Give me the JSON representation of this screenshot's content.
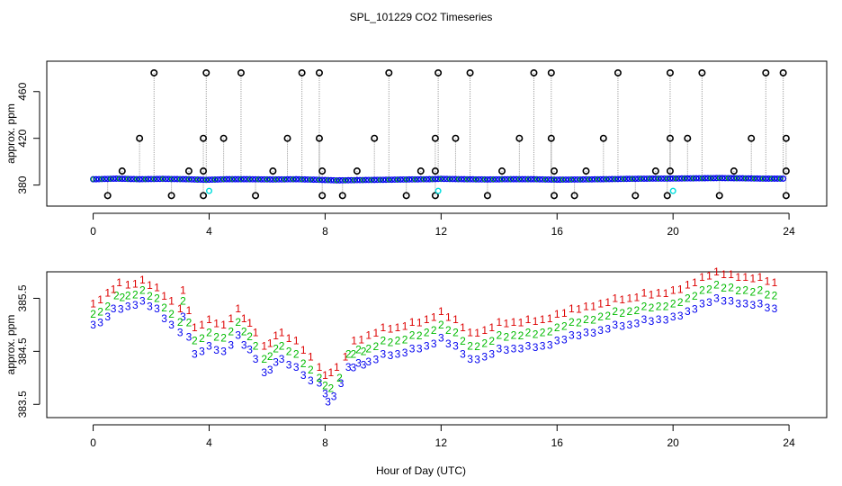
{
  "title": "SPL_101229  CO2 Timeseries",
  "xlabel": "Hour of Day (UTC)",
  "colors": {
    "frame": "#000000",
    "drop_line": "#a0a0a0",
    "outlier": "#000000",
    "blue": "#0000ee",
    "green": "#00bb00",
    "red": "#dd0000",
    "cyan": "#00dddd"
  },
  "chart_data": [
    {
      "type": "scatter",
      "panel": "top",
      "ylabel": "approx. ppm",
      "xlim": [
        -1.6,
        25.3
      ],
      "ylim": [
        362,
        486
      ],
      "xticks": [
        0,
        4,
        8,
        12,
        16,
        20,
        24
      ],
      "yticks": [
        380,
        420,
        460
      ],
      "baseline": {
        "x": [
          0.1,
          0.8,
          1.6,
          2.4,
          3.2,
          3.9,
          4.6,
          5.4,
          6.2,
          7.0,
          7.8,
          8.4,
          9.2,
          10.0,
          10.8,
          11.6,
          12.0,
          12.8,
          13.6,
          14.4,
          15.2,
          16.0,
          16.8,
          17.6,
          18.4,
          19.2,
          20.0,
          20.8,
          21.6,
          22.4,
          23.2,
          23.8
        ],
        "y": [
          385,
          385.5,
          385,
          385.3,
          385,
          384.5,
          385,
          385,
          384.8,
          385,
          384.5,
          384,
          384.3,
          384.5,
          384.8,
          385,
          385.3,
          385,
          384.8,
          385,
          385,
          384.6,
          384.8,
          385,
          385.3,
          385.5,
          385.6,
          385.8,
          386,
          385.8,
          385.5,
          385.5
        ]
      },
      "series": [
        {
          "name": "outlier_high",
          "x": [
            2.1,
            3.9,
            5.1,
            7.2,
            7.8,
            10.2,
            11.9,
            13.0,
            15.2,
            15.8,
            18.1,
            19.9,
            21.0,
            23.2,
            23.8
          ],
          "y": [
            476,
            476,
            476,
            476,
            476,
            476,
            476,
            476,
            476,
            476,
            476,
            476,
            476,
            476,
            476
          ]
        },
        {
          "name": "outlier_mid",
          "x": [
            1.6,
            3.8,
            4.5,
            6.7,
            7.8,
            9.7,
            11.8,
            12.5,
            14.7,
            15.8,
            17.6,
            19.9,
            20.5,
            22.7,
            23.9
          ],
          "y": [
            420,
            420,
            420,
            420,
            420,
            420,
            420,
            420,
            420,
            420,
            420,
            420,
            420,
            420,
            420
          ]
        },
        {
          "name": "outlier_small",
          "x": [
            1.0,
            3.3,
            3.8,
            6.2,
            7.9,
            9.1,
            11.3,
            11.8,
            14.1,
            15.9,
            17.0,
            19.4,
            19.9,
            22.1,
            23.9
          ],
          "y": [
            392,
            392,
            392,
            392,
            392,
            392,
            392,
            392,
            392,
            392,
            392,
            392,
            392,
            392,
            392
          ]
        },
        {
          "name": "outlier_low",
          "x": [
            0.5,
            2.7,
            3.8,
            5.6,
            7.9,
            8.6,
            10.8,
            11.8,
            13.6,
            15.9,
            16.6,
            18.7,
            19.8,
            21.6,
            23.9
          ],
          "y": [
            371,
            371,
            371,
            371,
            371,
            371,
            371,
            371,
            371,
            371,
            371,
            371,
            371,
            371,
            371
          ]
        },
        {
          "name": "cyan",
          "x": [
            4.0,
            11.9,
            20.0
          ],
          "y": [
            375,
            375,
            375
          ]
        }
      ]
    },
    {
      "type": "scatter",
      "panel": "bottom",
      "ylabel": "approx. ppm",
      "xlim": [
        -1.6,
        25.3
      ],
      "ylim": [
        383.25,
        386.0
      ],
      "xticks": [
        0,
        4,
        8,
        12,
        16,
        20,
        24
      ],
      "yticks": [
        383.5,
        384.5,
        385.5
      ],
      "yticklabels": [
        "383.5",
        "384.5",
        "385.5"
      ],
      "series": [
        {
          "name": "3",
          "label": "3",
          "x": [
            0.0,
            0.5,
            0.7,
            1.2,
            1.7,
            2.2,
            2.7,
            3.0,
            3.1,
            3.5,
            4.0,
            4.5,
            5.0,
            5.6,
            5.9,
            6.5,
            7.0,
            7.5,
            7.8,
            8.0,
            8.1,
            8.3,
            8.8,
            9.5,
            10.0,
            10.5,
            11.0,
            11.5,
            12.0,
            12.5,
            13.0,
            13.5,
            14.0,
            14.5,
            15.0,
            15.5,
            16.0,
            16.5,
            17.0,
            17.5,
            18.0,
            18.5,
            19.0,
            19.5,
            20.0,
            20.5,
            21.0,
            21.5,
            22.0,
            22.5,
            23.0,
            23.5
          ],
          "y": [
            385.0,
            385.15,
            385.3,
            385.35,
            385.45,
            385.3,
            385.0,
            384.85,
            385.15,
            384.45,
            384.6,
            384.5,
            384.8,
            384.35,
            384.1,
            384.35,
            384.2,
            383.95,
            383.9,
            383.7,
            383.55,
            383.65,
            384.2,
            384.3,
            384.45,
            384.45,
            384.55,
            384.6,
            384.75,
            384.6,
            384.35,
            384.4,
            384.55,
            384.55,
            384.6,
            384.6,
            384.7,
            384.8,
            384.85,
            384.9,
            385.0,
            385.0,
            385.1,
            385.1,
            385.15,
            385.25,
            385.4,
            385.5,
            385.45,
            385.4,
            385.4,
            385.3
          ]
        },
        {
          "name": "2",
          "label": "2",
          "x": [
            0.0,
            0.5,
            0.8,
            1.2,
            1.7,
            2.2,
            2.7,
            3.0,
            3.1,
            3.5,
            4.0,
            4.5,
            5.0,
            5.6,
            5.9,
            6.5,
            7.0,
            7.5,
            7.8,
            8.0,
            8.2,
            8.5,
            8.8,
            9.5,
            10.0,
            10.5,
            11.0,
            11.5,
            12.0,
            12.5,
            13.0,
            13.5,
            14.0,
            14.5,
            15.0,
            15.5,
            16.0,
            16.5,
            17.0,
            17.5,
            18.0,
            18.5,
            19.0,
            19.5,
            20.0,
            20.5,
            21.0,
            21.5,
            22.0,
            22.5,
            23.0,
            23.5
          ],
          "y": [
            385.2,
            385.35,
            385.55,
            385.55,
            385.65,
            385.5,
            385.2,
            385.05,
            385.45,
            384.7,
            384.85,
            384.75,
            385.05,
            384.6,
            384.35,
            384.6,
            384.45,
            384.15,
            384.0,
            383.85,
            383.8,
            384.0,
            384.45,
            384.55,
            384.7,
            384.7,
            384.8,
            384.85,
            385.0,
            384.85,
            384.6,
            384.65,
            384.8,
            384.8,
            384.85,
            384.85,
            384.95,
            385.05,
            385.1,
            385.15,
            385.25,
            385.25,
            385.35,
            385.35,
            385.4,
            385.5,
            385.65,
            385.75,
            385.7,
            385.65,
            385.65,
            385.55
          ]
        },
        {
          "name": "1",
          "label": "1",
          "x": [
            0.0,
            0.5,
            0.9,
            1.2,
            1.7,
            2.2,
            2.7,
            3.0,
            3.1,
            3.5,
            4.0,
            4.5,
            5.0,
            5.6,
            5.9,
            6.5,
            7.0,
            7.5,
            7.8,
            8.0,
            8.4,
            8.7,
            9.0,
            9.5,
            10.0,
            10.5,
            11.0,
            11.5,
            12.0,
            12.5,
            13.0,
            13.5,
            14.0,
            14.5,
            15.0,
            15.5,
            16.0,
            16.5,
            17.0,
            17.5,
            18.0,
            18.5,
            19.0,
            19.5,
            20.0,
            20.5,
            21.0,
            21.5,
            22.0,
            22.5,
            23.0,
            23.5
          ],
          "y": [
            385.4,
            385.6,
            385.8,
            385.75,
            385.85,
            385.7,
            385.45,
            385.3,
            385.65,
            384.95,
            385.1,
            385.0,
            385.3,
            384.85,
            384.6,
            384.85,
            384.7,
            384.4,
            384.2,
            384.05,
            384.2,
            384.4,
            384.7,
            384.8,
            384.95,
            384.95,
            385.05,
            385.1,
            385.25,
            385.1,
            384.85,
            384.9,
            385.05,
            385.05,
            385.1,
            385.1,
            385.2,
            385.3,
            385.35,
            385.4,
            385.5,
            385.5,
            385.6,
            385.6,
            385.65,
            385.75,
            385.9,
            386.0,
            385.95,
            385.9,
            385.9,
            385.8
          ]
        }
      ]
    }
  ]
}
